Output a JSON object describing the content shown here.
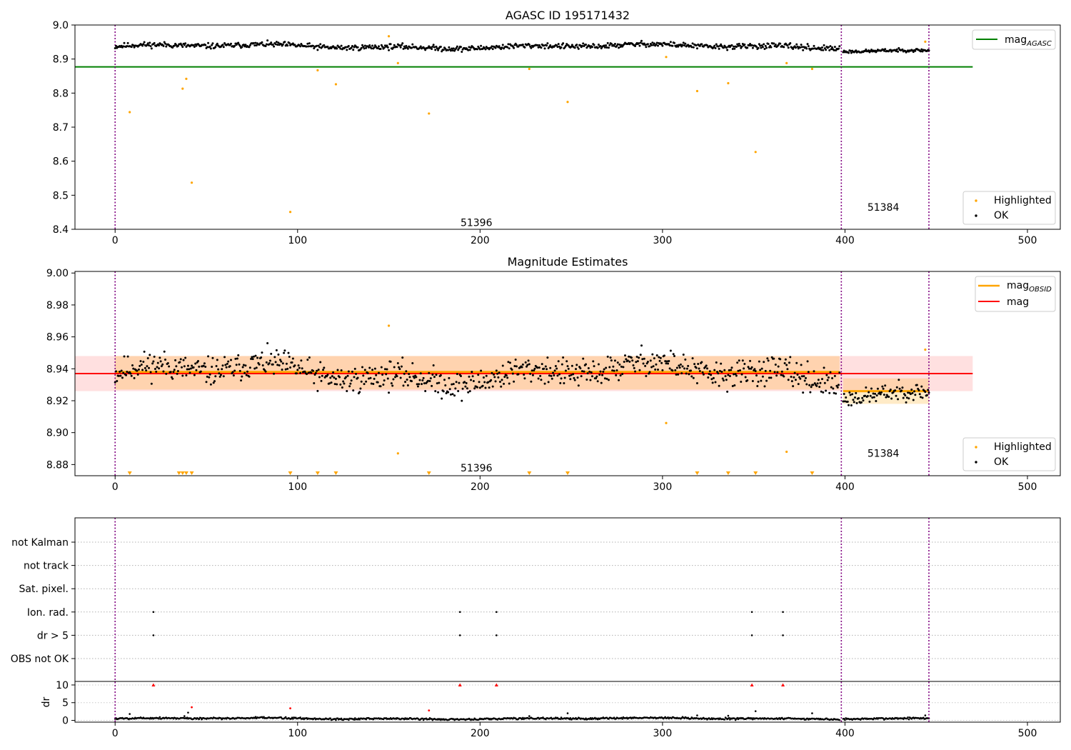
{
  "chart_data": [
    {
      "type": "scatter",
      "title": "AGASC ID 195171432",
      "xlim": [
        -22,
        518
      ],
      "ylim": [
        8.4,
        9.0
      ],
      "x_ticks": [
        "0",
        "100",
        "200",
        "300",
        "400",
        "500"
      ],
      "y_ticks": [
        "8.4",
        "8.5",
        "8.6",
        "8.7",
        "8.8",
        "8.9",
        "9.0"
      ],
      "legend_top": {
        "position": "top-right",
        "entries": [
          {
            "label": "mag",
            "sub": "AGASC",
            "color": "#008000"
          }
        ]
      },
      "legend_bottom": {
        "position": "bottom-right",
        "entries": [
          {
            "label": "Highlighted",
            "color": "#ffa500"
          },
          {
            "label": "OK",
            "color": "#000000"
          }
        ]
      },
      "obsid_labels": [
        {
          "text": "51396",
          "x": 198,
          "y": 8.42
        },
        {
          "text": "51384",
          "x": 421,
          "y": 8.465
        }
      ],
      "vlines": [
        0,
        398,
        446
      ],
      "mag_agasc": 8.877,
      "hline_range": [
        -22,
        470
      ],
      "highlighted": [
        [
          8,
          8.744
        ],
        [
          37,
          8.813
        ],
        [
          39,
          8.842
        ],
        [
          42,
          8.537
        ],
        [
          96,
          8.451
        ],
        [
          111,
          8.867
        ],
        [
          121,
          8.826
        ],
        [
          150,
          8.967
        ],
        [
          155,
          8.888
        ],
        [
          172,
          8.74
        ],
        [
          227,
          8.871
        ],
        [
          248,
          8.774
        ],
        [
          302,
          8.906
        ],
        [
          319,
          8.806
        ],
        [
          336,
          8.829
        ],
        [
          351,
          8.627
        ],
        [
          368,
          8.888
        ],
        [
          382,
          8.871
        ],
        [
          444,
          8.951
        ]
      ],
      "ok_series": {
        "segments": [
          {
            "x_range": [
              0,
              397
            ],
            "mean": 8.937,
            "amp": 0.012,
            "seed": 11
          },
          {
            "x_range": [
              399,
              446
            ],
            "mean": 8.926,
            "amp": 0.007,
            "seed": 23
          }
        ]
      }
    },
    {
      "type": "scatter",
      "title": "Magnitude Estimates",
      "xlim": [
        -22,
        518
      ],
      "ylim": [
        8.873,
        9.001
      ],
      "x_ticks": [
        "0",
        "100",
        "200",
        "300",
        "400",
        "500"
      ],
      "y_ticks": [
        "8.88",
        "8.90",
        "8.92",
        "8.94",
        "8.96",
        "8.98",
        "9.00"
      ],
      "legend_top": {
        "position": "top-right",
        "entries": [
          {
            "label": "mag",
            "sub": "OBSID",
            "color": "#ffa500"
          },
          {
            "label": "mag",
            "color": "#ff0000"
          }
        ]
      },
      "legend_bottom": {
        "position": "bottom-right",
        "entries": [
          {
            "label": "Highlighted",
            "color": "#ffa500"
          },
          {
            "label": "OK",
            "color": "#000000"
          }
        ]
      },
      "obsid_labels": [
        {
          "text": "51396",
          "x": 198,
          "y": 8.878
        },
        {
          "text": "51384",
          "x": 421,
          "y": 8.887
        }
      ],
      "vlines": [
        0,
        398,
        446
      ],
      "mag_line": {
        "value": 8.937,
        "band": [
          8.926,
          8.948
        ],
        "x_range": [
          -22,
          470
        ]
      },
      "obsid_segments": [
        {
          "x_range": [
            0,
            397
          ],
          "value": 8.938,
          "band": [
            8.927,
            8.948
          ]
        },
        {
          "x_range": [
            399,
            446
          ],
          "value": 8.926,
          "band": [
            8.918,
            8.934
          ]
        }
      ],
      "highlighted": [
        [
          150,
          8.967
        ],
        [
          155,
          8.887
        ],
        [
          302,
          8.906
        ],
        [
          368,
          8.888
        ],
        [
          444,
          8.952
        ]
      ],
      "below_markers": [
        8,
        35,
        37,
        39,
        42,
        96,
        111,
        121,
        172,
        227,
        248,
        319,
        336,
        351,
        382
      ],
      "ok_series": {
        "segments": [
          {
            "x_range": [
              0,
              397
            ],
            "mean": 8.937,
            "amp": 0.013,
            "seed": 11
          },
          {
            "x_range": [
              399,
              446
            ],
            "mean": 8.926,
            "amp": 0.008,
            "seed": 23
          }
        ]
      }
    },
    {
      "type": "scatter",
      "title": "",
      "xlim": [
        -22,
        518
      ],
      "x_ticks": [
        "0",
        "100",
        "200",
        "300",
        "400",
        "500"
      ],
      "flag_rows": [
        "not Kalman",
        "not track",
        "Sat. pixel.",
        "Ion. rad.",
        "dr > 5",
        "OBS not OK"
      ],
      "flag_points": [
        {
          "row": "Ion. rad.",
          "x": [
            21,
            189,
            209,
            349,
            366
          ]
        },
        {
          "row": "dr > 5",
          "x": [
            21,
            189,
            209,
            349,
            366
          ]
        }
      ],
      "vlines": [
        0,
        398,
        446
      ],
      "dr": {
        "ylabel": "dr",
        "ylim": [
          -0.5,
          11
        ],
        "y_ticks": [
          "0",
          "5",
          "10"
        ],
        "clipped_markers": [
          21,
          189,
          209,
          349,
          366
        ],
        "highlighted": [
          [
            42,
            3.7
          ],
          [
            96,
            3.4
          ],
          [
            172,
            2.8
          ]
        ],
        "ok_series": {
          "segments": [
            {
              "x_range": [
                0,
                397
              ],
              "mean": 0.5,
              "amp": 0.4,
              "seed": 5
            },
            {
              "x_range": [
                399,
                446
              ],
              "mean": 0.6,
              "amp": 0.4,
              "seed": 7
            }
          ]
        },
        "spikes": [
          [
            8,
            1.8
          ],
          [
            38,
            1.2
          ],
          [
            40,
            2.2
          ],
          [
            227,
            1.2
          ],
          [
            248,
            2.0
          ],
          [
            319,
            1.4
          ],
          [
            336,
            1.3
          ],
          [
            351,
            2.6
          ],
          [
            382,
            2.0
          ],
          [
            444,
            1.4
          ]
        ]
      }
    }
  ]
}
